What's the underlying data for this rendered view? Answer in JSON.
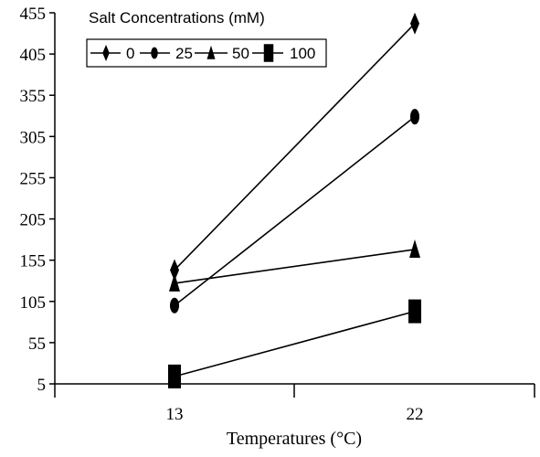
{
  "chart_data": {
    "type": "line",
    "xlabel": "Temperatures (°C)",
    "ylabel": "",
    "categories": [
      "13",
      "22"
    ],
    "ylim": [
      5,
      455
    ],
    "yticks": [
      "455",
      "405",
      "355",
      "305",
      "255",
      "205",
      "155",
      "105",
      "55",
      "5"
    ],
    "legend": {
      "title": "Salt Concentrations (mM)",
      "placement": "top-left"
    },
    "series": [
      {
        "name": "0",
        "marker": "diamond",
        "values": [
          143,
          442
        ]
      },
      {
        "name": "25",
        "marker": "circle",
        "values": [
          100,
          329
        ]
      },
      {
        "name": "50",
        "marker": "triangle",
        "values": [
          127,
          168
        ]
      },
      {
        "name": "100",
        "marker": "square",
        "values": [
          14,
          93
        ]
      }
    ],
    "grid": false,
    "colors": {
      "line": "#000000",
      "marker": "#000000"
    }
  }
}
